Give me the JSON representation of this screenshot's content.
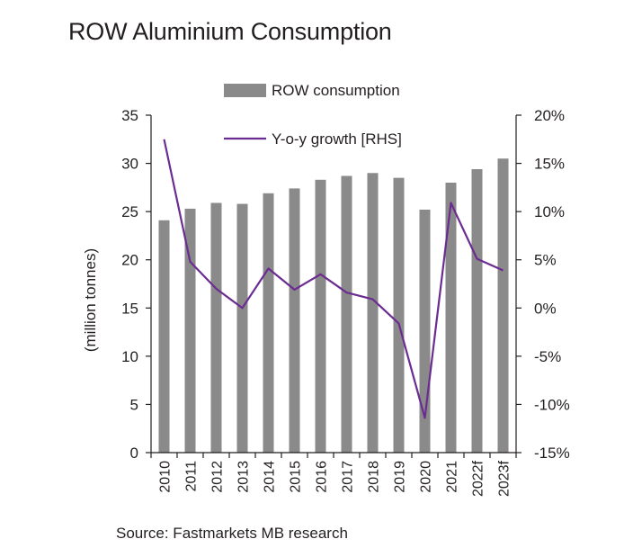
{
  "title": "ROW Aluminium Consumption",
  "source": "Source: Fastmarkets MB research",
  "colors": {
    "bar": "#8a8a8a",
    "line": "#6b2c91",
    "axis": "#231f20"
  },
  "chart_data": {
    "type": "bar",
    "categories": [
      "2010",
      "2011",
      "2012",
      "2013",
      "2014",
      "2015",
      "2016",
      "2017",
      "2018",
      "2019",
      "2020",
      "2021",
      "2022f",
      "2023f"
    ],
    "series": [
      {
        "name": "ROW consumption",
        "type": "bar",
        "axis": "left",
        "values": [
          24.1,
          25.3,
          25.9,
          25.8,
          26.9,
          27.4,
          28.3,
          28.7,
          29.0,
          28.5,
          25.2,
          28.0,
          29.4,
          30.5
        ]
      },
      {
        "name": "Y-o-y growth [RHS]",
        "type": "line",
        "axis": "right",
        "values": [
          17.5,
          4.8,
          2.0,
          0.0,
          4.1,
          1.9,
          3.5,
          1.6,
          0.9,
          -1.6,
          -11.4,
          10.9,
          5.1,
          3.9
        ]
      }
    ],
    "ylabel": "(million tonnes)",
    "ylim": [
      0,
      35
    ],
    "yticks": [
      0,
      5,
      10,
      15,
      20,
      25,
      30,
      35
    ],
    "y2lim": [
      -15,
      20
    ],
    "y2ticks": [
      -15,
      -10,
      -5,
      0,
      5,
      10,
      15,
      20
    ],
    "y2_tick_labels": [
      "-15%",
      "-10%",
      "-5%",
      "0%",
      "5%",
      "10%",
      "15%",
      "20%"
    ],
    "legend_position": "top",
    "grid": false
  }
}
